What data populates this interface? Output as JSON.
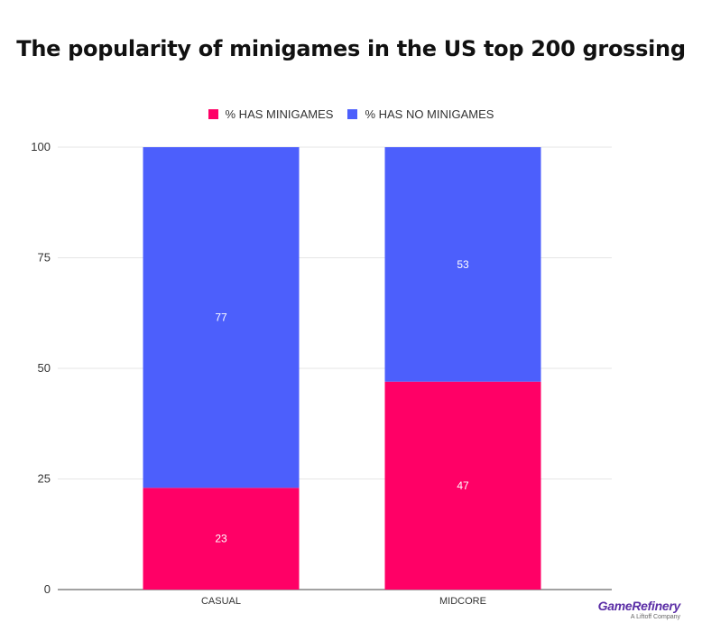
{
  "chart_data": {
    "type": "bar",
    "stacked": true,
    "title": "The popularity of minigames in the US top 200 grossing",
    "xlabel": "",
    "ylabel": "",
    "categories": [
      "CASUAL",
      "MIDCORE"
    ],
    "ylim": [
      0,
      100
    ],
    "yticks": [
      0,
      25,
      50,
      75,
      100
    ],
    "series": [
      {
        "name": "% HAS MINIGAMES",
        "values": [
          23,
          47
        ],
        "color": "#ff0066"
      },
      {
        "name": "% HAS NO MINIGAMES",
        "values": [
          77,
          53
        ],
        "color": "#4c5ffc"
      }
    ],
    "legend_position": "top-center",
    "grid": true
  },
  "legend": {
    "items": [
      {
        "label": "%  HAS MINIGAMES",
        "color": "#ff0066"
      },
      {
        "label": "% HAS NO MINIGAMES",
        "color": "#4c5ffc"
      }
    ]
  },
  "logo": {
    "name": "GameRefinery",
    "tagline": "A Liftoff Company"
  }
}
